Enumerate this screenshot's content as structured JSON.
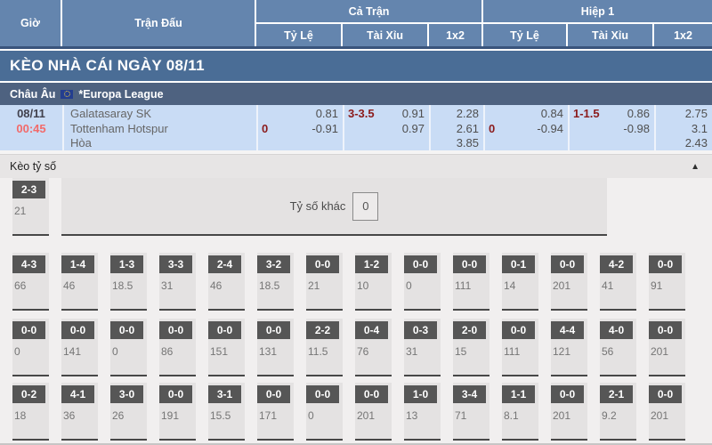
{
  "header": {
    "gio": "Giờ",
    "tran_dau": "Trận Đấu",
    "ca_tran": "Cả Trận",
    "hiep1": "Hiệp 1",
    "ty_le": "Tỷ Lệ",
    "tai_xiu": "Tài Xỉu",
    "onextwo": "1x2"
  },
  "banner": {
    "title": "KÈO NHÀ CÁI NGÀY 08/11"
  },
  "league": {
    "region": "Châu Âu",
    "name": "*Europa League"
  },
  "match": {
    "date": "08/11",
    "time": "00:45",
    "home": "Galatasaray SK",
    "away": "Tottenham Hotspur",
    "draw_label": "Hòa",
    "full": {
      "handicap": {
        "line": "0",
        "home": "0.81",
        "away": "-0.91"
      },
      "over_under": {
        "line": "3-3.5",
        "over": "0.91",
        "under": "0.97"
      },
      "onextwo": {
        "home": "2.28",
        "away": "2.61",
        "draw": "3.85"
      }
    },
    "half": {
      "handicap": {
        "line": "0",
        "home": "0.84",
        "away": "-0.94"
      },
      "over_under": {
        "line": "1-1.5",
        "over": "0.86",
        "under": "-0.98"
      },
      "onextwo": {
        "home": "2.75",
        "away": "3.1",
        "draw": "2.43"
      }
    }
  },
  "score_section": {
    "title": "Kèo tỷ số",
    "collapse_icon": "▲",
    "rows": [
      [
        {
          "score": "4-3",
          "odds": "66"
        },
        {
          "score": "1-4",
          "odds": "46"
        },
        {
          "score": "1-3",
          "odds": "18.5"
        },
        {
          "score": "3-3",
          "odds": "31"
        },
        {
          "score": "2-4",
          "odds": "46"
        },
        {
          "score": "3-2",
          "odds": "18.5"
        },
        {
          "score": "0-0",
          "odds": "21"
        },
        {
          "score": "1-2",
          "odds": "10"
        },
        {
          "score": "0-0",
          "odds": "0"
        },
        {
          "score": "0-0",
          "odds": "111"
        },
        {
          "score": "0-1",
          "odds": "14"
        },
        {
          "score": "0-0",
          "odds": "201"
        },
        {
          "score": "4-2",
          "odds": "41"
        },
        {
          "score": "0-0",
          "odds": "91"
        }
      ],
      [
        {
          "score": "0-0",
          "odds": "0"
        },
        {
          "score": "0-0",
          "odds": "141"
        },
        {
          "score": "0-0",
          "odds": "0"
        },
        {
          "score": "0-0",
          "odds": "86"
        },
        {
          "score": "0-0",
          "odds": "151"
        },
        {
          "score": "0-0",
          "odds": "131"
        },
        {
          "score": "2-2",
          "odds": "11.5"
        },
        {
          "score": "0-4",
          "odds": "76"
        },
        {
          "score": "0-3",
          "odds": "31"
        },
        {
          "score": "2-0",
          "odds": "15"
        },
        {
          "score": "0-0",
          "odds": "111"
        },
        {
          "score": "4-4",
          "odds": "121"
        },
        {
          "score": "4-0",
          "odds": "56"
        },
        {
          "score": "0-0",
          "odds": "201"
        }
      ],
      [
        {
          "score": "0-2",
          "odds": "18"
        },
        {
          "score": "4-1",
          "odds": "36"
        },
        {
          "score": "3-0",
          "odds": "26"
        },
        {
          "score": "0-0",
          "odds": "191"
        },
        {
          "score": "3-1",
          "odds": "15.5"
        },
        {
          "score": "0-0",
          "odds": "171"
        },
        {
          "score": "0-0",
          "odds": "0"
        },
        {
          "score": "0-0",
          "odds": "201"
        },
        {
          "score": "1-0",
          "odds": "13"
        },
        {
          "score": "3-4",
          "odds": "71"
        },
        {
          "score": "1-1",
          "odds": "8.1"
        },
        {
          "score": "0-0",
          "odds": "201"
        },
        {
          "score": "2-1",
          "odds": "9.2"
        },
        {
          "score": "0-0",
          "odds": "201"
        }
      ],
      [
        {
          "score": "2-3",
          "odds": "21"
        }
      ]
    ],
    "other": {
      "label": "Tỷ số khác",
      "value": "0"
    }
  },
  "colors": {
    "header_blue": "#6485ae",
    "banner_blue": "#4a6d96",
    "league_blue": "#4e6280",
    "match_row_blue": "#c9dcf5",
    "time_red": "#f26a6a",
    "handicap_dark_red": "#8b1b1b",
    "score_box_gray": "#565656",
    "section_bg": "#f1efef"
  }
}
